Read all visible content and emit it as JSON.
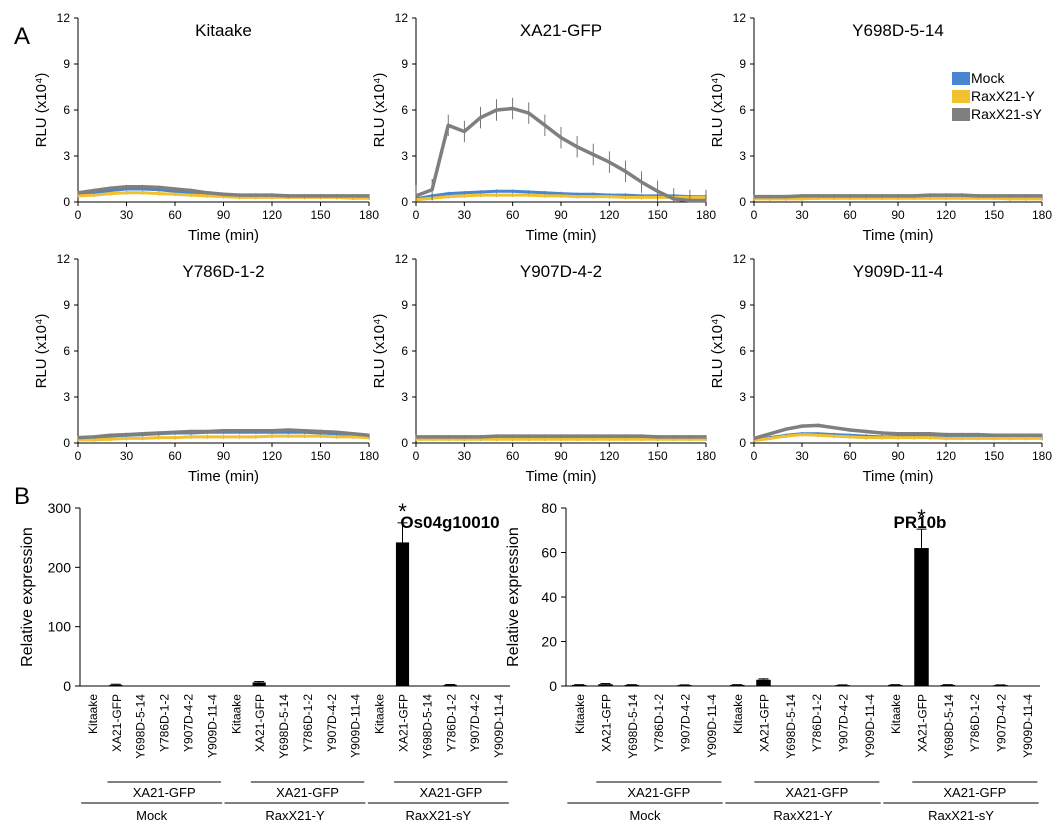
{
  "panel_labels": [
    "A",
    "B"
  ],
  "colors": {
    "mock": "#4a86d0",
    "raxy": "#f2c12e",
    "raxsy": "#7f7f7f",
    "bar": "#000000"
  },
  "chart_data": [
    {
      "type": "line",
      "title": "Kitaake",
      "xlabel": "Time (min)",
      "ylabel": "RLU (x10⁴)",
      "xlim": [
        0,
        180
      ],
      "ylim": [
        0,
        12
      ],
      "xticks": [
        0,
        30,
        60,
        90,
        120,
        150,
        180
      ],
      "yticks": [
        0,
        3,
        6,
        9,
        12
      ],
      "x": [
        0,
        10,
        20,
        30,
        40,
        50,
        60,
        70,
        80,
        90,
        100,
        110,
        120,
        130,
        140,
        150,
        160,
        170,
        180
      ],
      "series": [
        {
          "name": "Mock",
          "values": [
            0.5,
            0.6,
            0.75,
            0.85,
            0.85,
            0.8,
            0.7,
            0.6,
            0.5,
            0.45,
            0.4,
            0.4,
            0.4,
            0.4,
            0.35,
            0.35,
            0.35,
            0.35,
            0.35
          ]
        },
        {
          "name": "RaxX21-Y",
          "values": [
            0.4,
            0.45,
            0.55,
            0.6,
            0.6,
            0.55,
            0.5,
            0.45,
            0.4,
            0.35,
            0.3,
            0.3,
            0.3,
            0.3,
            0.3,
            0.3,
            0.3,
            0.25,
            0.25
          ]
        },
        {
          "name": "RaxX21-sY",
          "values": [
            0.6,
            0.75,
            0.9,
            1.0,
            1.0,
            0.95,
            0.85,
            0.75,
            0.6,
            0.5,
            0.45,
            0.45,
            0.45,
            0.4,
            0.4,
            0.4,
            0.4,
            0.4,
            0.4
          ]
        }
      ]
    },
    {
      "type": "line",
      "title": "XA21-GFP",
      "xlabel": "Time (min)",
      "ylabel": "RLU (x10⁴)",
      "xlim": [
        0,
        180
      ],
      "ylim": [
        0,
        12
      ],
      "xticks": [
        0,
        30,
        60,
        90,
        120,
        150,
        180
      ],
      "yticks": [
        0,
        3,
        6,
        9,
        12
      ],
      "x": [
        0,
        10,
        20,
        30,
        40,
        50,
        60,
        70,
        80,
        90,
        100,
        110,
        120,
        130,
        140,
        150,
        160,
        170,
        180
      ],
      "series": [
        {
          "name": "Mock",
          "values": [
            0.2,
            0.4,
            0.55,
            0.6,
            0.65,
            0.7,
            0.7,
            0.65,
            0.6,
            0.55,
            0.5,
            0.5,
            0.45,
            0.45,
            0.4,
            0.4,
            0.4,
            0.35,
            0.35
          ]
        },
        {
          "name": "RaxX21-Y",
          "values": [
            0.15,
            0.25,
            0.35,
            0.4,
            0.45,
            0.45,
            0.45,
            0.45,
            0.4,
            0.4,
            0.35,
            0.35,
            0.35,
            0.3,
            0.3,
            0.3,
            0.3,
            0.3,
            0.3
          ]
        },
        {
          "name": "RaxX21-sY",
          "values": [
            0.4,
            0.8,
            5.0,
            4.6,
            5.5,
            6.0,
            6.1,
            5.8,
            5.0,
            4.2,
            3.6,
            3.1,
            2.6,
            2.0,
            1.3,
            0.7,
            0.2,
            0.1,
            0.1
          ]
        }
      ]
    },
    {
      "type": "line",
      "title": "Y698D-5-14",
      "xlabel": "Time (min)",
      "ylabel": "RLU (x10⁴)",
      "xlim": [
        0,
        180
      ],
      "ylim": [
        0,
        12
      ],
      "xticks": [
        0,
        30,
        60,
        90,
        120,
        150,
        180
      ],
      "yticks": [
        0,
        3,
        6,
        9,
        12
      ],
      "legend": [
        "Mock",
        "RaxX21-Y",
        "RaxX21-sY"
      ],
      "x": [
        0,
        10,
        20,
        30,
        40,
        50,
        60,
        70,
        80,
        90,
        100,
        110,
        120,
        130,
        140,
        150,
        160,
        170,
        180
      ],
      "series": [
        {
          "name": "Mock",
          "values": [
            0.3,
            0.3,
            0.3,
            0.3,
            0.3,
            0.35,
            0.35,
            0.35,
            0.35,
            0.35,
            0.35,
            0.35,
            0.35,
            0.35,
            0.35,
            0.35,
            0.35,
            0.3,
            0.3
          ]
        },
        {
          "name": "RaxX21-Y",
          "values": [
            0.2,
            0.2,
            0.2,
            0.2,
            0.25,
            0.25,
            0.25,
            0.25,
            0.25,
            0.25,
            0.25,
            0.25,
            0.25,
            0.25,
            0.25,
            0.25,
            0.2,
            0.2,
            0.2
          ]
        },
        {
          "name": "RaxX21-sY",
          "values": [
            0.35,
            0.35,
            0.35,
            0.4,
            0.4,
            0.4,
            0.4,
            0.4,
            0.4,
            0.4,
            0.4,
            0.45,
            0.45,
            0.45,
            0.4,
            0.4,
            0.4,
            0.4,
            0.4
          ]
        }
      ]
    },
    {
      "type": "line",
      "title": "Y786D-1-2",
      "xlabel": "Time (min)",
      "ylabel": "RLU (x10⁴)",
      "xlim": [
        0,
        180
      ],
      "ylim": [
        0,
        12
      ],
      "xticks": [
        0,
        30,
        60,
        90,
        120,
        150,
        180
      ],
      "yticks": [
        0,
        3,
        6,
        9,
        12
      ],
      "x": [
        0,
        10,
        20,
        30,
        40,
        50,
        60,
        70,
        80,
        90,
        100,
        110,
        120,
        130,
        140,
        150,
        160,
        170,
        180
      ],
      "series": [
        {
          "name": "Mock",
          "values": [
            0.3,
            0.35,
            0.45,
            0.5,
            0.55,
            0.6,
            0.65,
            0.65,
            0.7,
            0.7,
            0.7,
            0.7,
            0.7,
            0.7,
            0.7,
            0.65,
            0.6,
            0.55,
            0.45
          ]
        },
        {
          "name": "RaxX21-Y",
          "values": [
            0.2,
            0.2,
            0.25,
            0.3,
            0.3,
            0.35,
            0.35,
            0.4,
            0.4,
            0.4,
            0.4,
            0.4,
            0.45,
            0.45,
            0.45,
            0.45,
            0.4,
            0.4,
            0.35
          ]
        },
        {
          "name": "RaxX21-sY",
          "values": [
            0.35,
            0.4,
            0.5,
            0.55,
            0.6,
            0.65,
            0.7,
            0.75,
            0.75,
            0.8,
            0.8,
            0.8,
            0.8,
            0.85,
            0.8,
            0.75,
            0.7,
            0.6,
            0.5
          ]
        }
      ]
    },
    {
      "type": "line",
      "title": "Y907D-4-2",
      "xlabel": "Time (min)",
      "ylabel": "RLU (x10⁴)",
      "xlim": [
        0,
        180
      ],
      "ylim": [
        0,
        12
      ],
      "xticks": [
        0,
        30,
        60,
        90,
        120,
        150,
        180
      ],
      "yticks": [
        0,
        3,
        6,
        9,
        12
      ],
      "x": [
        0,
        10,
        20,
        30,
        40,
        50,
        60,
        70,
        80,
        90,
        100,
        110,
        120,
        130,
        140,
        150,
        160,
        170,
        180
      ],
      "series": [
        {
          "name": "Mock",
          "values": [
            0.35,
            0.35,
            0.35,
            0.35,
            0.35,
            0.35,
            0.4,
            0.4,
            0.4,
            0.4,
            0.4,
            0.4,
            0.4,
            0.4,
            0.4,
            0.35,
            0.35,
            0.35,
            0.35
          ]
        },
        {
          "name": "RaxX21-Y",
          "values": [
            0.25,
            0.25,
            0.25,
            0.25,
            0.25,
            0.25,
            0.25,
            0.25,
            0.25,
            0.25,
            0.25,
            0.25,
            0.25,
            0.25,
            0.25,
            0.25,
            0.25,
            0.25,
            0.25
          ]
        },
        {
          "name": "RaxX21-sY",
          "values": [
            0.4,
            0.4,
            0.4,
            0.4,
            0.4,
            0.45,
            0.45,
            0.45,
            0.45,
            0.45,
            0.45,
            0.45,
            0.45,
            0.45,
            0.45,
            0.4,
            0.4,
            0.4,
            0.4
          ]
        }
      ]
    },
    {
      "type": "line",
      "title": "Y909D-11-4",
      "xlabel": "Time (min)",
      "ylabel": "RLU (x10⁴)",
      "xlim": [
        0,
        180
      ],
      "ylim": [
        0,
        12
      ],
      "xticks": [
        0,
        30,
        60,
        90,
        120,
        150,
        180
      ],
      "yticks": [
        0,
        3,
        6,
        9,
        12
      ],
      "x": [
        0,
        10,
        20,
        30,
        40,
        50,
        60,
        70,
        80,
        90,
        100,
        110,
        120,
        130,
        140,
        150,
        160,
        170,
        180
      ],
      "series": [
        {
          "name": "Mock",
          "values": [
            0.2,
            0.35,
            0.5,
            0.6,
            0.6,
            0.55,
            0.5,
            0.45,
            0.4,
            0.4,
            0.4,
            0.4,
            0.4,
            0.4,
            0.4,
            0.35,
            0.35,
            0.35,
            0.35
          ]
        },
        {
          "name": "RaxX21-Y",
          "values": [
            0.15,
            0.3,
            0.45,
            0.55,
            0.5,
            0.45,
            0.4,
            0.35,
            0.35,
            0.35,
            0.35,
            0.35,
            0.3,
            0.3,
            0.3,
            0.3,
            0.3,
            0.3,
            0.3
          ]
        },
        {
          "name": "RaxX21-sY",
          "values": [
            0.3,
            0.6,
            0.9,
            1.1,
            1.15,
            1.0,
            0.85,
            0.75,
            0.65,
            0.6,
            0.6,
            0.6,
            0.55,
            0.55,
            0.55,
            0.5,
            0.5,
            0.5,
            0.5
          ]
        }
      ]
    },
    {
      "type": "bar",
      "title": "Os04g10010",
      "ylabel": "Relative expression",
      "ylim": [
        0,
        300
      ],
      "yticks": [
        0,
        100,
        200,
        300
      ],
      "categories": [
        "Kitaake",
        "XA21-GFP",
        "Y698D-5-14",
        "Y786D-1-2",
        "Y907D-4-2",
        "Y909D-11-4",
        "Kitaake",
        "XA21-GFP",
        "Y698D-5-14",
        "Y786D-1-2",
        "Y907D-4-2",
        "Y909D-11-4",
        "Kitaake",
        "XA21-GFP",
        "Y698D-5-14",
        "Y786D-1-2",
        "Y907D-4-2",
        "Y909D-11-4"
      ],
      "values": [
        0.5,
        2,
        0.5,
        0.5,
        0.5,
        0.5,
        0.5,
        6,
        0.5,
        0.5,
        0.5,
        0.5,
        0.5,
        242,
        0.5,
        2,
        0.5,
        0.5
      ],
      "errors": [
        0,
        1,
        0,
        0,
        0,
        0,
        0,
        1.5,
        0,
        0,
        0,
        0,
        0,
        33,
        0,
        0.5,
        0,
        0
      ],
      "groups": [
        {
          "treatment": "Mock",
          "subgroup": "XA21-GFP"
        },
        {
          "treatment": "RaxX21-Y",
          "subgroup": "XA21-GFP"
        },
        {
          "treatment": "RaxX21-sY",
          "subgroup": "XA21-GFP"
        }
      ],
      "annotation": "*"
    },
    {
      "type": "bar",
      "title": "PR10b",
      "ylabel": "Relative expression",
      "ylim": [
        0,
        80
      ],
      "yticks": [
        0,
        20,
        40,
        60,
        80
      ],
      "categories": [
        "Kitaake",
        "XA21-GFP",
        "Y698D-5-14",
        "Y786D-1-2",
        "Y907D-4-2",
        "Y909D-11-4",
        "Kitaake",
        "XA21-GFP",
        "Y698D-5-14",
        "Y786D-1-2",
        "Y907D-4-2",
        "Y909D-11-4",
        "Kitaake",
        "XA21-GFP",
        "Y698D-5-14",
        "Y786D-1-2",
        "Y907D-4-2",
        "Y909D-11-4"
      ],
      "values": [
        0.5,
        0.8,
        0.5,
        0.2,
        0.4,
        0.2,
        0.5,
        2.8,
        0.2,
        0.2,
        0.4,
        0.2,
        0.5,
        62,
        0.5,
        0.2,
        0.4,
        0.2
      ],
      "errors": [
        0.1,
        0.3,
        0.1,
        0,
        0.1,
        0,
        0.1,
        0.4,
        0,
        0,
        0.1,
        0,
        0.1,
        8.5,
        0.1,
        0,
        0.1,
        0
      ],
      "groups": [
        {
          "treatment": "Mock",
          "subgroup": "XA21-GFP"
        },
        {
          "treatment": "RaxX21-Y",
          "subgroup": "XA21-GFP"
        },
        {
          "treatment": "RaxX21-sY",
          "subgroup": "XA21-GFP"
        }
      ],
      "annotation": "*"
    }
  ]
}
